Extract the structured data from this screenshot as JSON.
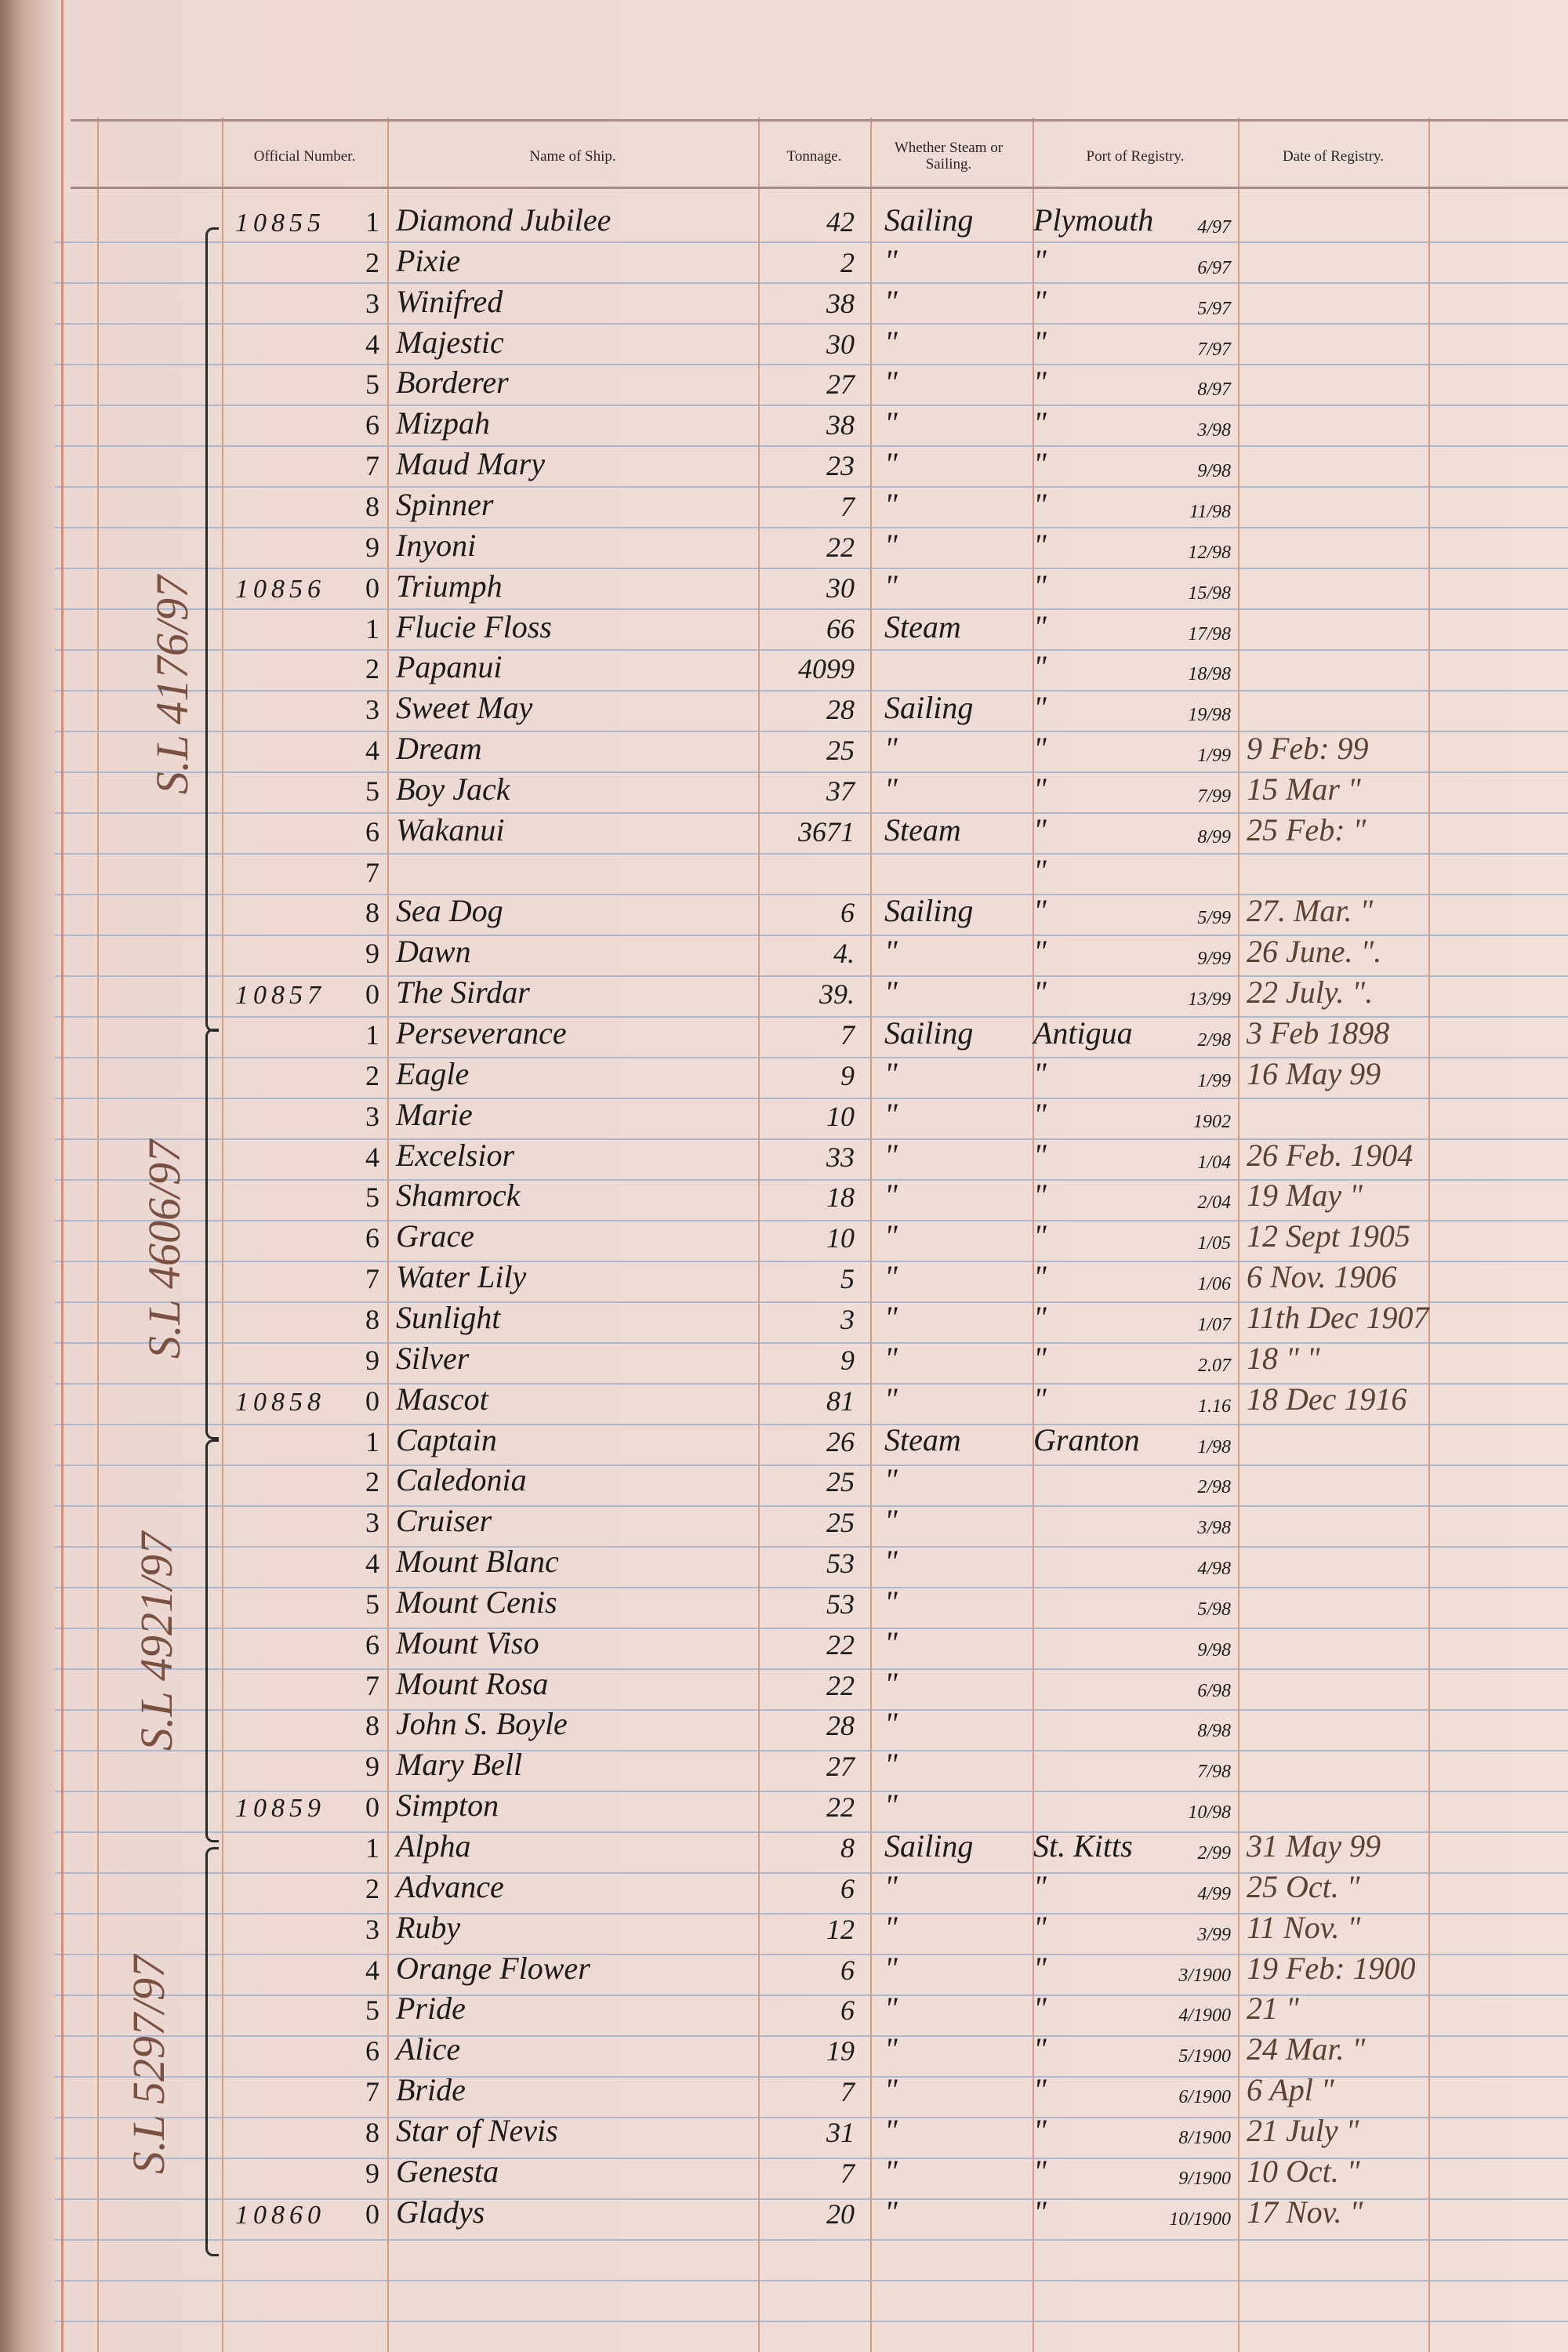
{
  "header": {
    "official_number": "Official Number.",
    "name_of_ship": "Name of Ship.",
    "tonnage": "Tonnage.",
    "steam_or_sailing": "Whether Steam or Sailing.",
    "port_of_registry": "Port of Registry.",
    "date_of_registry": "Date of Registry."
  },
  "side_notes": [
    "S.L 4176/97",
    "S.L 4606/97",
    "S.L 4921/97",
    "S.L 5297/97"
  ],
  "rows": [
    {
      "off": "10855",
      "dig": "1",
      "name": "Diamond Jubilee",
      "ton": "42",
      "ss": "Sailing",
      "port": "Plymouth",
      "frac": "4/97",
      "date": ""
    },
    {
      "off": "",
      "dig": "2",
      "name": "Pixie",
      "ton": "2",
      "ss": "\"",
      "port": "\"",
      "frac": "6/97",
      "date": ""
    },
    {
      "off": "",
      "dig": "3",
      "name": "Winifred",
      "ton": "38",
      "ss": "\"",
      "port": "\"",
      "frac": "5/97",
      "date": ""
    },
    {
      "off": "",
      "dig": "4",
      "name": "Majestic",
      "ton": "30",
      "ss": "\"",
      "port": "\"",
      "frac": "7/97",
      "date": ""
    },
    {
      "off": "",
      "dig": "5",
      "name": "Borderer",
      "ton": "27",
      "ss": "\"",
      "port": "\"",
      "frac": "8/97",
      "date": ""
    },
    {
      "off": "",
      "dig": "6",
      "name": "Mizpah",
      "ton": "38",
      "ss": "\"",
      "port": "\"",
      "frac": "3/98",
      "date": ""
    },
    {
      "off": "",
      "dig": "7",
      "name": "Maud Mary",
      "ton": "23",
      "ss": "\"",
      "port": "\"",
      "frac": "9/98",
      "date": ""
    },
    {
      "off": "",
      "dig": "8",
      "name": "Spinner",
      "ton": "7",
      "ss": "\"",
      "port": "\"",
      "frac": "11/98",
      "date": ""
    },
    {
      "off": "",
      "dig": "9",
      "name": "Inyoni",
      "ton": "22",
      "ss": "\"",
      "port": "\"",
      "frac": "12/98",
      "date": ""
    },
    {
      "off": "10856",
      "dig": "0",
      "name": "Triumph",
      "ton": "30",
      "ss": "\"",
      "port": "\"",
      "frac": "15/98",
      "date": ""
    },
    {
      "off": "",
      "dig": "1",
      "name": "Flucie Floss",
      "ton": "66",
      "ss": "Steam",
      "port": "\"",
      "frac": "17/98",
      "date": ""
    },
    {
      "off": "",
      "dig": "2",
      "name": "Papanui",
      "ton": "4099",
      "ss": "",
      "port": "\"",
      "frac": "18/98",
      "date": ""
    },
    {
      "off": "",
      "dig": "3",
      "name": "Sweet May",
      "ton": "28",
      "ss": "Sailing",
      "port": "\"",
      "frac": "19/98",
      "date": ""
    },
    {
      "off": "",
      "dig": "4",
      "name": "Dream",
      "ton": "25",
      "ss": "\"",
      "port": "\"",
      "frac": "1/99",
      "date": "9 Feb: 99"
    },
    {
      "off": "",
      "dig": "5",
      "name": "Boy Jack",
      "ton": "37",
      "ss": "\"",
      "port": "\"",
      "frac": "7/99",
      "date": "15 Mar \""
    },
    {
      "off": "",
      "dig": "6",
      "name": "Wakanui",
      "ton": "3671",
      "ss": "Steam",
      "port": "\"",
      "frac": "8/99",
      "date": "25 Feb: \""
    },
    {
      "off": "",
      "dig": "7",
      "name": "",
      "ton": "",
      "ss": "",
      "port": "\"",
      "frac": "",
      "date": ""
    },
    {
      "off": "",
      "dig": "8",
      "name": "Sea Dog",
      "ton": "6",
      "ss": "Sailing",
      "port": "\"",
      "frac": "5/99",
      "date": "27. Mar. \""
    },
    {
      "off": "",
      "dig": "9",
      "name": "Dawn",
      "ton": "4.",
      "ss": "\"",
      "port": "\"",
      "frac": "9/99",
      "date": "26 June. \"."
    },
    {
      "off": "10857",
      "dig": "0",
      "name": "The Sirdar",
      "ton": "39.",
      "ss": "\"",
      "port": "\"",
      "frac": "13/99",
      "date": "22 July. \"."
    },
    {
      "off": "",
      "dig": "1",
      "name": "Perseverance",
      "ton": "7",
      "ss": "Sailing",
      "port": "Antigua",
      "frac": "2/98",
      "date": "3 Feb 1898"
    },
    {
      "off": "",
      "dig": "2",
      "name": "Eagle",
      "ton": "9",
      "ss": "\"",
      "port": "\"",
      "frac": "1/99",
      "date": "16 May 99"
    },
    {
      "off": "",
      "dig": "3",
      "name": "Marie",
      "ton": "10",
      "ss": "\"",
      "port": "\"",
      "frac": "1902",
      "date": ""
    },
    {
      "off": "",
      "dig": "4",
      "name": "Excelsior",
      "ton": "33",
      "ss": "\"",
      "port": "\"",
      "frac": "1/04",
      "date": "26 Feb. 1904"
    },
    {
      "off": "",
      "dig": "5",
      "name": "Shamrock",
      "ton": "18",
      "ss": "\"",
      "port": "\"",
      "frac": "2/04",
      "date": "19 May \""
    },
    {
      "off": "",
      "dig": "6",
      "name": "Grace",
      "ton": "10",
      "ss": "\"",
      "port": "\"",
      "frac": "1/05",
      "date": "12 Sept 1905"
    },
    {
      "off": "",
      "dig": "7",
      "name": "Water Lily",
      "ton": "5",
      "ss": "\"",
      "port": "\"",
      "frac": "1/06",
      "date": "6 Nov. 1906"
    },
    {
      "off": "",
      "dig": "8",
      "name": "Sunlight",
      "ton": "3",
      "ss": "\"",
      "port": "\"",
      "frac": "1/07",
      "date": "11th Dec 1907"
    },
    {
      "off": "",
      "dig": "9",
      "name": "Silver",
      "ton": "9",
      "ss": "\"",
      "port": "\"",
      "frac": "2.07",
      "date": "18 \" \""
    },
    {
      "off": "10858",
      "dig": "0",
      "name": "Mascot",
      "ton": "81",
      "ss": "\"",
      "port": "\"",
      "frac": "1.16",
      "date": "18 Dec 1916"
    },
    {
      "off": "",
      "dig": "1",
      "name": "Captain",
      "ton": "26",
      "ss": "Steam",
      "port": "Granton",
      "frac": "1/98",
      "date": ""
    },
    {
      "off": "",
      "dig": "2",
      "name": "Caledonia",
      "ton": "25",
      "ss": "\"",
      "port": "",
      "frac": "2/98",
      "date": ""
    },
    {
      "off": "",
      "dig": "3",
      "name": "Cruiser",
      "ton": "25",
      "ss": "\"",
      "port": "",
      "frac": "3/98",
      "date": ""
    },
    {
      "off": "",
      "dig": "4",
      "name": "Mount Blanc",
      "ton": "53",
      "ss": "\"",
      "port": "",
      "frac": "4/98",
      "date": ""
    },
    {
      "off": "",
      "dig": "5",
      "name": "Mount Cenis",
      "ton": "53",
      "ss": "\"",
      "port": "",
      "frac": "5/98",
      "date": ""
    },
    {
      "off": "",
      "dig": "6",
      "name": "Mount Viso",
      "ton": "22",
      "ss": "\"",
      "port": "",
      "frac": "9/98",
      "date": ""
    },
    {
      "off": "",
      "dig": "7",
      "name": "Mount Rosa",
      "ton": "22",
      "ss": "\"",
      "port": "",
      "frac": "6/98",
      "date": ""
    },
    {
      "off": "",
      "dig": "8",
      "name": "John S. Boyle",
      "ton": "28",
      "ss": "\"",
      "port": "",
      "frac": "8/98",
      "date": ""
    },
    {
      "off": "",
      "dig": "9",
      "name": "Mary Bell",
      "ton": "27",
      "ss": "\"",
      "port": "",
      "frac": "7/98",
      "date": ""
    },
    {
      "off": "10859",
      "dig": "0",
      "name": "Simpton",
      "ton": "22",
      "ss": "\"",
      "port": "",
      "frac": "10/98",
      "date": ""
    },
    {
      "off": "",
      "dig": "1",
      "name": "Alpha",
      "ton": "8",
      "ss": "Sailing",
      "port": "St. Kitts",
      "frac": "2/99",
      "date": "31 May 99"
    },
    {
      "off": "",
      "dig": "2",
      "name": "Advance",
      "ton": "6",
      "ss": "\"",
      "port": "\"",
      "frac": "4/99",
      "date": "25 Oct. \""
    },
    {
      "off": "",
      "dig": "3",
      "name": "Ruby",
      "ton": "12",
      "ss": "\"",
      "port": "\"",
      "frac": "3/99",
      "date": "11 Nov. \""
    },
    {
      "off": "",
      "dig": "4",
      "name": "Orange Flower",
      "ton": "6",
      "ss": "\"",
      "port": "\"",
      "frac": "3/1900",
      "date": "19 Feb: 1900"
    },
    {
      "off": "",
      "dig": "5",
      "name": "Pride",
      "ton": "6",
      "ss": "\"",
      "port": "\"",
      "frac": "4/1900",
      "date": "21 \""
    },
    {
      "off": "",
      "dig": "6",
      "name": "Alice",
      "ton": "19",
      "ss": "\"",
      "port": "\"",
      "frac": "5/1900",
      "date": "24 Mar. \""
    },
    {
      "off": "",
      "dig": "7",
      "name": "Bride",
      "ton": "7",
      "ss": "\"",
      "port": "\"",
      "frac": "6/1900",
      "date": "6 Apl \""
    },
    {
      "off": "",
      "dig": "8",
      "name": "Star of Nevis",
      "ton": "31",
      "ss": "\"",
      "port": "\"",
      "frac": "8/1900",
      "date": "21 July \""
    },
    {
      "off": "",
      "dig": "9",
      "name": "Genesta",
      "ton": "7",
      "ss": "\"",
      "port": "\"",
      "frac": "9/1900",
      "date": "10 Oct. \""
    },
    {
      "off": "10860",
      "dig": "0",
      "name": "Gladys",
      "ton": "20",
      "ss": "\"",
      "port": "\"",
      "frac": "10/1900",
      "date": "17 Nov. \""
    }
  ]
}
